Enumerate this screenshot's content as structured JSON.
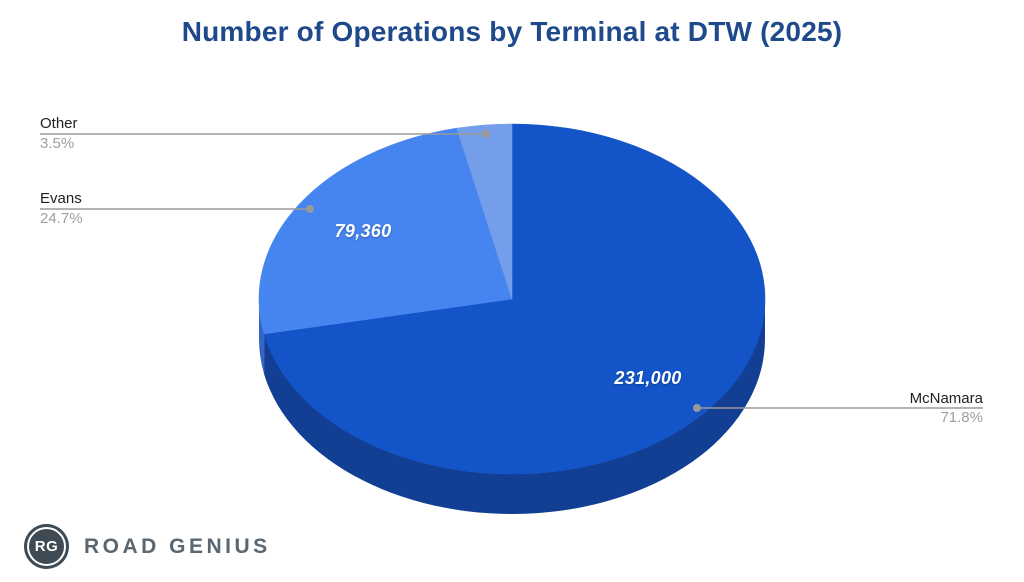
{
  "title": "Number of Operations by Terminal at DTW (2025)",
  "title_color": "#1e4a8c",
  "chart_data": {
    "type": "pie",
    "is_3d": true,
    "title": "Number of Operations by Terminal at DTW (2025)",
    "start_angle_deg": 0,
    "direction": "clockwise",
    "legend_position": "none",
    "background_color": "#ffffff",
    "leader_line_color": "#9a9a9a",
    "callout_name_color": "#212121",
    "callout_percent_color": "#9e9e9e",
    "value_label_color": "#ffffff",
    "slices": [
      {
        "label": "McNamara",
        "value": 231000,
        "value_label": "231,000",
        "percent": 71.8,
        "percent_label": "71.8%",
        "color": "#1355c9",
        "side_color": "#123f94"
      },
      {
        "label": "Evans",
        "value": 79360,
        "value_label": "79,360",
        "percent": 24.7,
        "percent_label": "24.7%",
        "color": "#4685f0",
        "side_color": "#3464c4"
      },
      {
        "label": "Other",
        "percent": 3.5,
        "percent_label": "3.5%",
        "color": "#749eea",
        "side_color": "#5578b8"
      }
    ]
  },
  "watermark": {
    "badge_text": "RG",
    "wordmark": "ROAD GENIUS"
  }
}
